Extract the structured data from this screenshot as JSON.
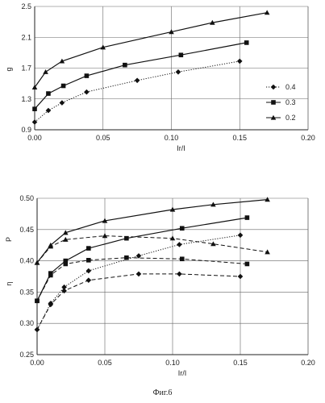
{
  "chart_data": [
    {
      "type": "line",
      "title": "",
      "xlabel": "Ir/I",
      "ylabel": "g",
      "xlim": [
        0,
        0.2
      ],
      "ylim": [
        0.9,
        2.5
      ],
      "xticks": [
        "0.00",
        "0.05",
        "0.10",
        "0.15",
        "0.20"
      ],
      "yticks": [
        "0.9",
        "1.3",
        "1.7",
        "2.1",
        "2.5"
      ],
      "grid": "horizontal",
      "legend": "right",
      "series": [
        {
          "name": "0.4",
          "marker": "diamond",
          "style": "dotted",
          "x": [
            0.0,
            0.01,
            0.02,
            0.038,
            0.075,
            0.105,
            0.15
          ],
          "y": [
            1.0,
            1.15,
            1.25,
            1.39,
            1.54,
            1.65,
            1.79
          ]
        },
        {
          "name": "0.3",
          "marker": "square",
          "style": "solid",
          "x": [
            0.0,
            0.01,
            0.021,
            0.038,
            0.066,
            0.107,
            0.155
          ],
          "y": [
            1.17,
            1.37,
            1.47,
            1.6,
            1.74,
            1.87,
            2.03
          ]
        },
        {
          "name": "0.2",
          "marker": "triangle",
          "style": "solid",
          "x": [
            0.0,
            0.008,
            0.02,
            0.05,
            0.1,
            0.13,
            0.17
          ],
          "y": [
            1.45,
            1.65,
            1.79,
            1.97,
            2.17,
            2.29,
            2.42
          ]
        }
      ]
    },
    {
      "type": "line",
      "title": "",
      "xlabel": "Ir/I",
      "ylabel": "η",
      "ylabel2": "P",
      "xlim": [
        0,
        0.2
      ],
      "ylim": [
        0.25,
        0.5
      ],
      "xticks": [
        "0.00",
        "0.05",
        "0.10",
        "0.15",
        "0.20"
      ],
      "yticks": [
        "0.25",
        "0.30",
        "0.35",
        "0.40",
        "0.45",
        "0.50"
      ],
      "grid": "horizontal",
      "legend": "none",
      "series": [
        {
          "marker": "triangle",
          "style": "solid",
          "x": [
            0.0,
            0.01,
            0.021,
            0.05,
            0.1,
            0.13,
            0.17
          ],
          "y": [
            0.397,
            0.425,
            0.445,
            0.464,
            0.482,
            0.49,
            0.498
          ]
        },
        {
          "marker": "square",
          "style": "solid",
          "x": [
            0.0,
            0.01,
            0.021,
            0.038,
            0.066,
            0.107,
            0.155
          ],
          "y": [
            0.336,
            0.38,
            0.4,
            0.42,
            0.436,
            0.452,
            0.469
          ]
        },
        {
          "marker": "diamond",
          "style": "dotted",
          "x": [
            0.0,
            0.01,
            0.02,
            0.038,
            0.075,
            0.105,
            0.15
          ],
          "y": [
            0.29,
            0.332,
            0.358,
            0.384,
            0.408,
            0.426,
            0.441
          ]
        },
        {
          "marker": "triangle",
          "style": "dashed",
          "x": [
            0.0,
            0.01,
            0.021,
            0.05,
            0.1,
            0.13,
            0.17
          ],
          "y": [
            0.397,
            0.423,
            0.434,
            0.44,
            0.436,
            0.427,
            0.414
          ]
        },
        {
          "marker": "square",
          "style": "dashed",
          "x": [
            0.0,
            0.01,
            0.021,
            0.038,
            0.066,
            0.107,
            0.155
          ],
          "y": [
            0.336,
            0.377,
            0.395,
            0.401,
            0.405,
            0.403,
            0.395
          ]
        },
        {
          "marker": "diamond",
          "style": "dashed",
          "x": [
            0.0,
            0.01,
            0.02,
            0.038,
            0.075,
            0.105,
            0.15
          ],
          "y": [
            0.29,
            0.33,
            0.352,
            0.369,
            0.379,
            0.379,
            0.375
          ]
        }
      ]
    }
  ],
  "caption": "Фиг.6"
}
